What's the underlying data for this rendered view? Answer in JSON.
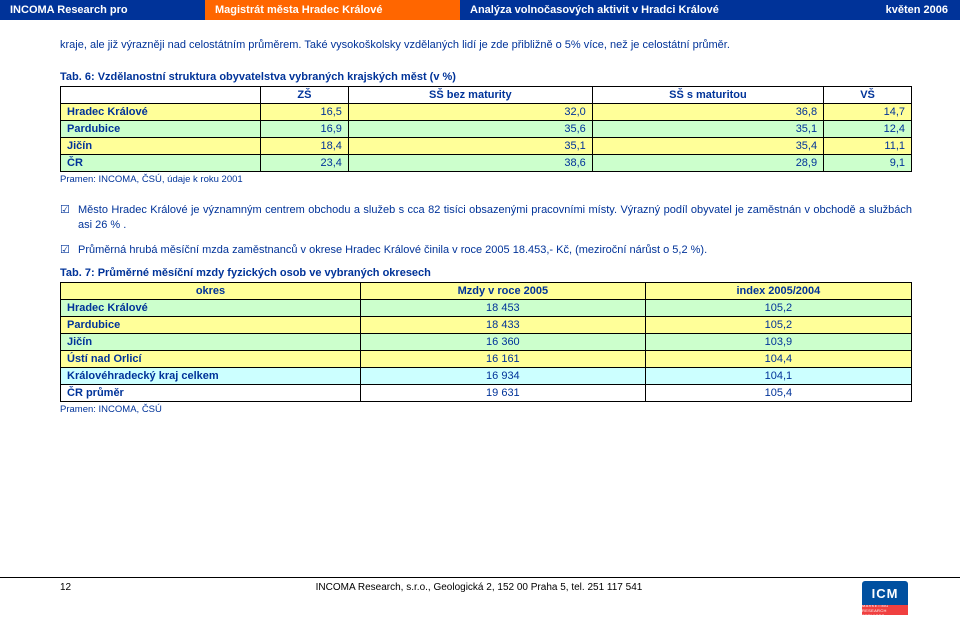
{
  "header": {
    "seg1": "INCOMA  Research pro",
    "seg2": "Magistrát města Hradec Králové",
    "seg3": "Analýza volnočasových aktivit v Hradci Králové",
    "seg4": "květen 2006"
  },
  "intro": "kraje, ale již výrazněji nad celostátním průměrem. Také vysokoškolsky vzdělaných lidí je zde přibližně o 5% více, než je celostátní průměr.",
  "table1": {
    "title": "Tab. 6: Vzdělanostní struktura obyvatelstva vybraných krajských měst (v %)",
    "columns": [
      "",
      "ZŠ",
      "SŠ bez maturity",
      "SŠ s maturitou",
      "VŠ"
    ],
    "rows": [
      {
        "label": "Hradec Králové",
        "vals": [
          "16,5",
          "32,0",
          "36,8",
          "14,7"
        ],
        "shade": "yellow"
      },
      {
        "label": "Pardubice",
        "vals": [
          "16,9",
          "35,6",
          "35,1",
          "12,4"
        ],
        "shade": "green"
      },
      {
        "label": "Jičín",
        "vals": [
          "18,4",
          "35,1",
          "35,4",
          "11,1"
        ],
        "shade": "yellow"
      },
      {
        "label": "ČR",
        "vals": [
          "23,4",
          "38,6",
          "28,9",
          "9,1"
        ],
        "shade": "green"
      }
    ],
    "source": "Pramen: INCOMA, ČSÚ, údaje k roku 2001"
  },
  "bullets": [
    "Město Hradec Králové je významným centrem obchodu a služeb s cca 82 tisíci obsazenými pracovními místy. Výrazný podíl obyvatel je zaměstnán v obchodě a službách  asi 26 % .",
    "Průměrná hrubá měsíční mzda zaměstnanců v okrese Hradec Králové činila v roce 2005 18.453,- Kč, (meziroční nárůst o 5,2 %)."
  ],
  "table2": {
    "title": "Tab. 7:  Průměrné měsíční mzdy fyzických osob ve vybraných okresech",
    "columns": [
      "okres",
      "Mzdy v roce 2005",
      "index 2005/2004"
    ],
    "rows": [
      {
        "label": "Hradec Králové",
        "vals": [
          "18 453",
          "105,2"
        ],
        "cls": "t2-row-g"
      },
      {
        "label": "Pardubice",
        "vals": [
          "18 433",
          "105,2"
        ],
        "cls": "t2-row-y"
      },
      {
        "label": "Jičín",
        "vals": [
          "16 360",
          "103,9"
        ],
        "cls": "t2-row-g"
      },
      {
        "label": "Ústí nad Orlicí",
        "vals": [
          "16 161",
          "104,4"
        ],
        "cls": "t2-row-y"
      },
      {
        "label": "Královéhradecký kraj celkem",
        "vals": [
          "16 934",
          "104,1"
        ],
        "cls": "t2-row-b"
      },
      {
        "label": "ČR průměr",
        "vals": [
          "19 631",
          "105,4"
        ],
        "cls": "t2-row-p"
      }
    ],
    "source": "Pramen: INCOMA, ČSÚ"
  },
  "footer": {
    "page": "12",
    "text": "INCOMA Research, s.r.o., Geologická 2, 152 00 Praha 5, tel. 251 117 541",
    "logo_top": "ICM",
    "logo_bot": "MARKETING RESEARCH SERVICES"
  },
  "check": "☑"
}
